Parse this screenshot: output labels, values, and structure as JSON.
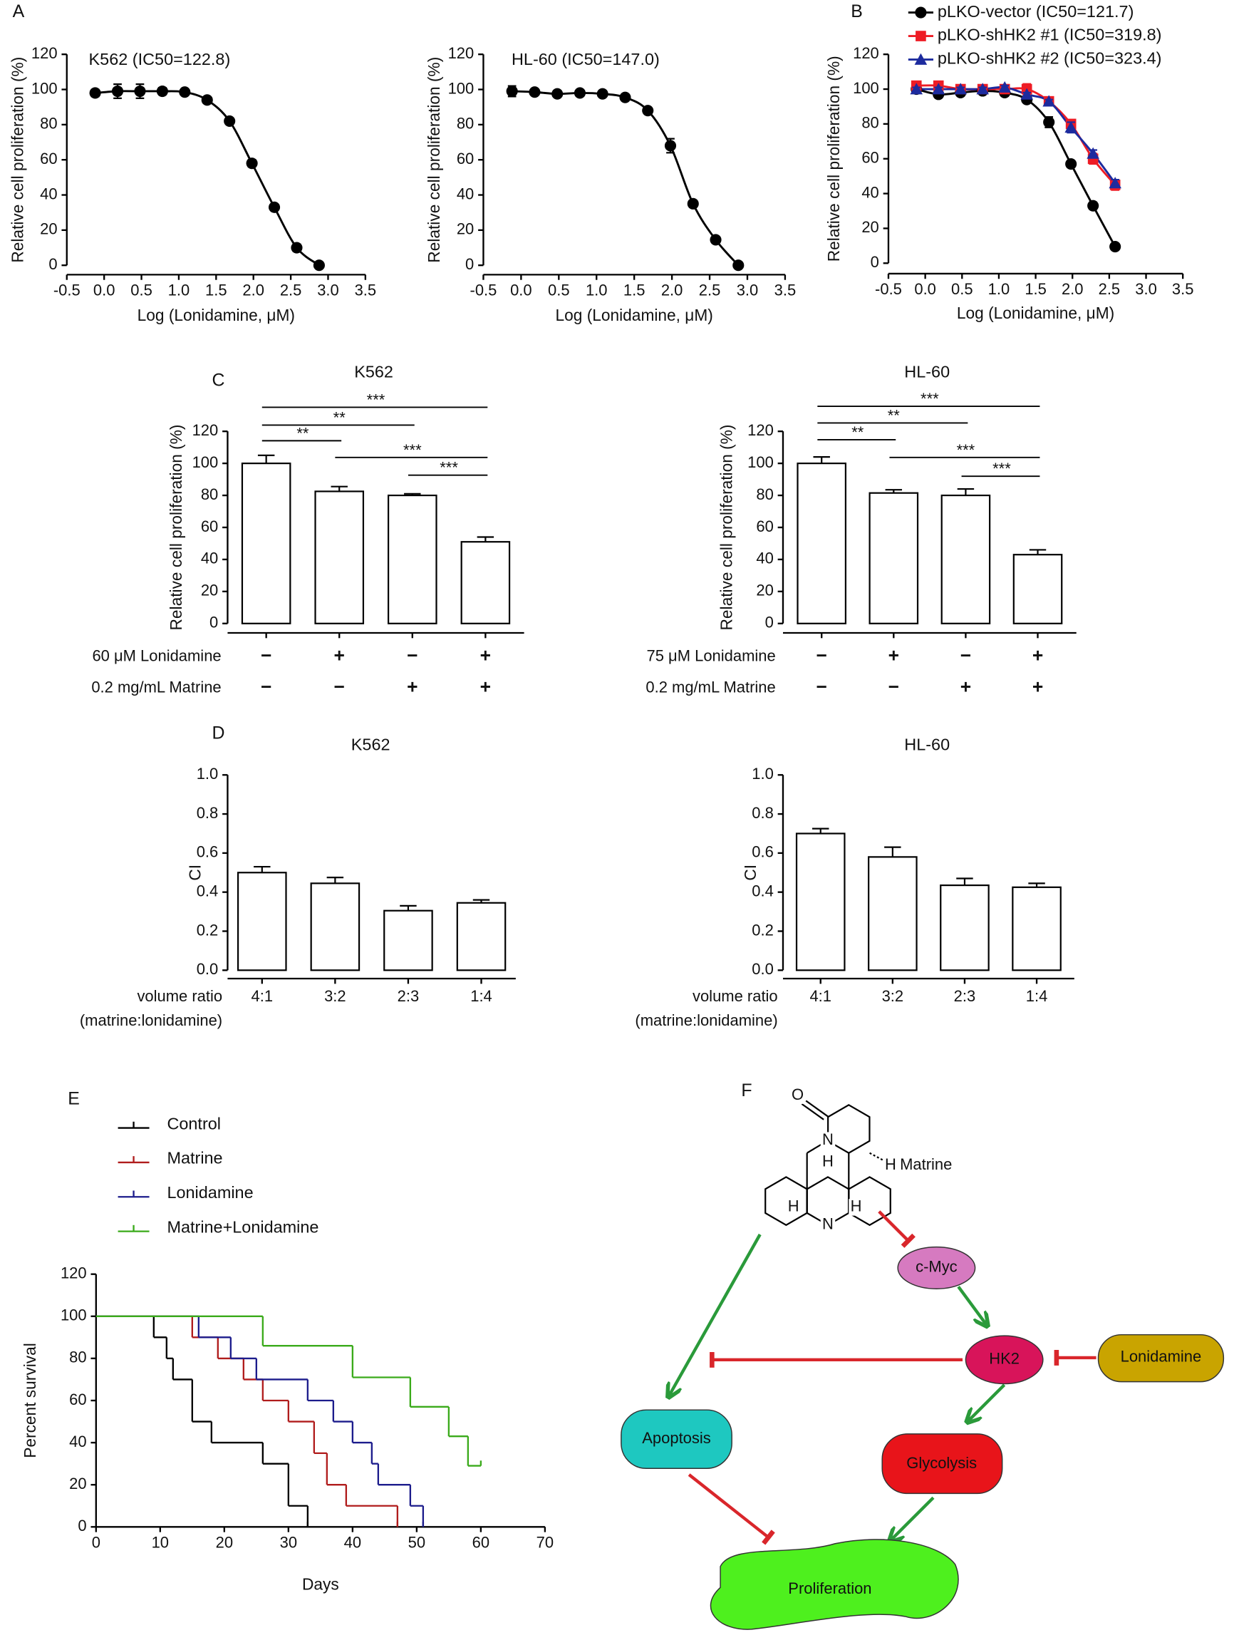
{
  "chart_data": [
    {
      "type": "line",
      "panel": "A",
      "annotation": "K562 (IC50=122.8)",
      "x": [
        -0.12,
        0.18,
        0.48,
        0.78,
        1.08,
        1.38,
        1.68,
        1.98,
        2.28,
        2.58,
        2.88
      ],
      "series": [
        {
          "color": "#000000",
          "marker": "circle",
          "values": [
            98,
            99,
            99,
            99,
            98.5,
            94,
            82,
            58,
            33,
            10,
            0
          ],
          "errors": [
            2,
            4,
            4,
            2,
            1,
            1,
            1,
            2,
            1,
            2,
            0
          ]
        }
      ],
      "xlim": [
        -0.5,
        3.5
      ],
      "xticks": [
        -0.5,
        {
          "value": 0,
          "label": "0.0"
        },
        0.5,
        {
          "value": 1,
          "label": "1.0"
        },
        1.5,
        {
          "value": 2,
          "label": "2.0"
        },
        2.5,
        {
          "value": 3,
          "label": "3.0"
        },
        3.5
      ],
      "ylim": [
        0,
        120
      ],
      "yticks": [
        0,
        20,
        40,
        60,
        80,
        100,
        120
      ],
      "x_label": "Log (Lonidamine, μM)",
      "y_label": "Relative cell proliferation (%)"
    },
    {
      "type": "line",
      "annotation": "HL-60 (IC50=147.0)",
      "x": [
        -0.12,
        0.18,
        0.48,
        0.78,
        1.08,
        1.38,
        1.68,
        1.98,
        2.28,
        2.58,
        2.88
      ],
      "series": [
        {
          "color": "#000000",
          "marker": "circle",
          "values": [
            99,
            98.5,
            97.5,
            98,
            97.5,
            95.5,
            88,
            68,
            35,
            14.5,
            0
          ],
          "errors": [
            3,
            1,
            1,
            1,
            1,
            1,
            1,
            4,
            1,
            1,
            0
          ]
        }
      ],
      "xlim": [
        -0.5,
        3.5
      ],
      "xticks": [
        -0.5,
        {
          "value": 0,
          "label": "0.0"
        },
        0.5,
        {
          "value": 1,
          "label": "1.0"
        },
        1.5,
        {
          "value": 2,
          "label": "2.0"
        },
        2.5,
        {
          "value": 3,
          "label": "3.0"
        },
        3.5
      ],
      "ylim": [
        0,
        120
      ],
      "yticks": [
        0,
        20,
        40,
        60,
        80,
        100,
        120
      ],
      "x_label": "Log (Lonidamine, μM)",
      "y_label": "Relative cell proliferation (%)"
    },
    {
      "type": "line",
      "panel": "B",
      "legend": "top-right",
      "x": [
        -0.12,
        0.18,
        0.48,
        0.78,
        1.08,
        1.38,
        1.68,
        1.98,
        2.28,
        2.58
      ],
      "series": [
        {
          "name": "pLKO-vector (IC50=121.7)",
          "color": "#000000",
          "marker": "circle",
          "values": [
            100,
            97,
            98,
            99,
            98,
            94,
            81,
            57,
            33,
            9.5
          ],
          "errors": [
            1,
            1,
            1,
            1,
            1,
            1,
            3,
            2,
            2,
            1
          ]
        },
        {
          "name": "pLKO-shHK2 #1 (IC50=319.8)",
          "color": "#ee1c25",
          "marker": "square",
          "values": [
            102,
            102,
            100,
            100,
            100,
            100,
            93,
            80,
            60,
            45
          ],
          "errors": [
            1,
            2,
            1,
            1,
            2,
            3,
            1,
            2,
            3,
            3
          ]
        },
        {
          "name": "pLKO-shHK2 #2 (IC50=323.4)",
          "color": "#1d2b9e",
          "marker": "triangle",
          "values": [
            100,
            100,
            100,
            100,
            101,
            97,
            93,
            78,
            63,
            46
          ],
          "errors": [
            1,
            1,
            1,
            1,
            1,
            1,
            1,
            3,
            2,
            2
          ]
        }
      ],
      "xlim": [
        -0.5,
        3.5
      ],
      "xticks": [
        -0.5,
        {
          "value": 0,
          "label": "0.0"
        },
        0.5,
        {
          "value": 1,
          "label": "1.0"
        },
        1.5,
        {
          "value": 2,
          "label": "2.0"
        },
        2.5,
        {
          "value": 3,
          "label": "3.0"
        },
        3.5
      ],
      "ylim": [
        0,
        120
      ],
      "yticks": [
        0,
        20,
        40,
        60,
        80,
        100,
        120
      ],
      "x_label": "Log (Lonidamine, μM)",
      "y_label": "Relative cell proliferation (%)"
    },
    {
      "type": "bar",
      "panel": "C",
      "title": "K562",
      "values": [
        100,
        82.5,
        80,
        51
      ],
      "errors": [
        5,
        3,
        1,
        3
      ],
      "conditions": [
        {
          "label": "60 μM Lonidamine",
          "signs": [
            "−",
            "+",
            "−",
            "+"
          ]
        },
        {
          "label": "0.2 mg/mL Matrine",
          "signs": [
            "−",
            "−",
            "+",
            "+"
          ]
        }
      ],
      "significance": [
        "***",
        "**",
        "**",
        "***",
        "***"
      ],
      "ylim": [
        0,
        120
      ],
      "yticks": [
        0,
        20,
        40,
        60,
        80,
        100,
        120
      ],
      "y_label": "Relative cell proliferation (%)"
    },
    {
      "type": "bar",
      "title": "HL-60",
      "values": [
        100,
        81.5,
        80,
        43
      ],
      "errors": [
        4,
        2,
        4,
        3
      ],
      "conditions": [
        {
          "label": "75 μM Lonidamine",
          "signs": [
            "−",
            "+",
            "−",
            "+"
          ]
        },
        {
          "label": "0.2 mg/mL Matrine",
          "signs": [
            "−",
            "−",
            "+",
            "+"
          ]
        }
      ],
      "significance": [
        "***",
        "**",
        "**",
        "***",
        "***"
      ],
      "ylim": [
        0,
        120
      ],
      "yticks": [
        0,
        20,
        40,
        60,
        80,
        100,
        120
      ],
      "y_label": "Relative cell proliferation (%)"
    },
    {
      "type": "bar",
      "panel": "D",
      "title": "K562",
      "categories": [
        "4:1",
        "3:2",
        "2:3",
        "1:4"
      ],
      "values": [
        0.5,
        0.445,
        0.305,
        0.345
      ],
      "errors": [
        0.03,
        0.03,
        0.025,
        0.015
      ],
      "x_label": [
        "volume ratio",
        "(matrine:lonidamine)"
      ],
      "y_label": "CI",
      "ylim": [
        0,
        1
      ],
      "yticks": [
        {
          "value": 0,
          "label": "0.0"
        },
        0.2,
        0.4,
        0.6,
        0.8,
        {
          "value": 1,
          "label": "1.0"
        }
      ]
    },
    {
      "type": "bar",
      "title": "HL-60",
      "categories": [
        "4:1",
        "3:2",
        "2:3",
        "1:4"
      ],
      "values": [
        0.7,
        0.58,
        0.435,
        0.425
      ],
      "errors": [
        0.025,
        0.05,
        0.035,
        0.02
      ],
      "x_label": [
        "volume ratio",
        "(matrine:lonidamine)"
      ],
      "y_label": "CI",
      "ylim": [
        0,
        1
      ],
      "yticks": [
        {
          "value": 0,
          "label": "0.0"
        },
        0.2,
        0.4,
        0.6,
        0.8,
        {
          "value": 1,
          "label": "1.0"
        }
      ]
    },
    {
      "type": "step",
      "panel": "E",
      "legend": "top-left",
      "series": [
        {
          "name": "Control",
          "color": "#000000",
          "x": [
            0,
            9,
            11,
            12,
            15,
            18,
            26,
            30,
            33
          ],
          "values": [
            100,
            90,
            80,
            70,
            50,
            40,
            30,
            10,
            0
          ]
        },
        {
          "name": "Matrine",
          "color": "#b01c1c",
          "x": [
            0,
            15,
            19,
            23,
            26,
            30,
            34,
            36,
            39,
            47
          ],
          "values": [
            100,
            90,
            80,
            70,
            60,
            50,
            35,
            20,
            10,
            0
          ]
        },
        {
          "name": "Lonidamine",
          "color": "#1c1c8c",
          "x": [
            0,
            16,
            21,
            25,
            33,
            37,
            40,
            43,
            44,
            49,
            51
          ],
          "values": [
            100,
            90,
            80,
            70,
            60,
            50,
            40,
            30,
            20,
            10,
            0
          ]
        },
        {
          "name": "Matrine+Lonidamine",
          "color": "#3aaa1a",
          "x": [
            0,
            26,
            40,
            49,
            55,
            58,
            60
          ],
          "values": [
            100,
            86,
            71,
            57,
            43,
            29,
            29
          ]
        }
      ],
      "xlim": [
        0,
        70
      ],
      "xticks": [
        0,
        10,
        20,
        30,
        40,
        50,
        60,
        70
      ],
      "ylim": [
        0,
        120
      ],
      "yticks": [
        0,
        20,
        40,
        60,
        80,
        100,
        120
      ],
      "x_label": "Days",
      "y_label": "Percent survival"
    }
  ],
  "diagram": {
    "panel": "F",
    "compound": "Matrine",
    "atoms": [
      "O",
      "N",
      "H",
      "H",
      "H",
      "N",
      "H"
    ],
    "nodes": {
      "cmyc": "c-Myc",
      "hk2": "HK2",
      "lonidamine": "Lonidamine",
      "apoptosis": "Apoptosis",
      "glycolysis": "Glycolysis",
      "proliferation": "Proliferation"
    }
  }
}
